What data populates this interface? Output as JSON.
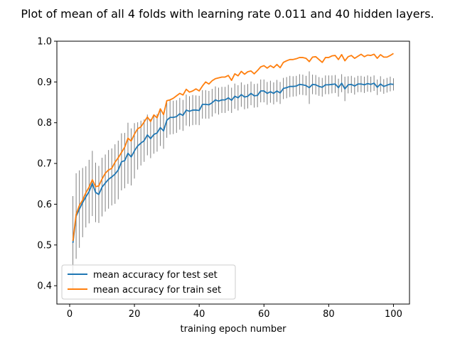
{
  "chart_data": {
    "type": "line",
    "title": "Plot of mean of all 4 folds with learning rate 0.011 and 40 hidden layers.",
    "xlabel": "training epoch number",
    "ylabel": "",
    "xlim": [
      -3.95,
      104.95
    ],
    "ylim": [
      0.355,
      1.0
    ],
    "xticks": [
      0,
      20,
      40,
      60,
      80,
      100
    ],
    "yticks": [
      0.4,
      0.5,
      0.6,
      0.7,
      0.8,
      0.9,
      1.0
    ],
    "xtick_labels": [
      "0",
      "20",
      "40",
      "60",
      "80",
      "100"
    ],
    "ytick_labels": [
      "0.4",
      "0.5",
      "0.6",
      "0.7",
      "0.8",
      "0.9",
      "1.0"
    ],
    "grid": false,
    "legend_position": "lower-left",
    "series": [
      {
        "name": "mean accuracy for test set",
        "color": "#1f77b4",
        "x": [
          1,
          2,
          3,
          4,
          5,
          6,
          7,
          8,
          9,
          10,
          11,
          12,
          13,
          14,
          15,
          16,
          17,
          18,
          19,
          20,
          21,
          22,
          23,
          24,
          25,
          26,
          27,
          28,
          29,
          30,
          31,
          32,
          33,
          34,
          35,
          36,
          37,
          38,
          39,
          40,
          41,
          42,
          43,
          44,
          45,
          46,
          47,
          48,
          49,
          50,
          51,
          52,
          53,
          54,
          55,
          56,
          57,
          58,
          59,
          60,
          61,
          62,
          63,
          64,
          65,
          66,
          67,
          68,
          69,
          70,
          71,
          72,
          73,
          74,
          75,
          76,
          77,
          78,
          79,
          80,
          81,
          82,
          83,
          84,
          85,
          86,
          87,
          88,
          89,
          90,
          91,
          92,
          93,
          94,
          95,
          96,
          97,
          98,
          99,
          100
        ],
        "y": [
          0.505,
          0.571,
          0.588,
          0.604,
          0.618,
          0.631,
          0.651,
          0.629,
          0.624,
          0.642,
          0.652,
          0.661,
          0.667,
          0.674,
          0.684,
          0.704,
          0.707,
          0.725,
          0.716,
          0.731,
          0.743,
          0.75,
          0.756,
          0.77,
          0.761,
          0.771,
          0.775,
          0.788,
          0.78,
          0.806,
          0.813,
          0.813,
          0.815,
          0.822,
          0.818,
          0.831,
          0.828,
          0.831,
          0.831,
          0.83,
          0.845,
          0.845,
          0.844,
          0.849,
          0.856,
          0.853,
          0.856,
          0.856,
          0.861,
          0.855,
          0.865,
          0.861,
          0.869,
          0.863,
          0.865,
          0.872,
          0.866,
          0.867,
          0.878,
          0.878,
          0.872,
          0.876,
          0.872,
          0.878,
          0.873,
          0.884,
          0.886,
          0.889,
          0.889,
          0.89,
          0.894,
          0.893,
          0.891,
          0.886,
          0.894,
          0.893,
          0.889,
          0.887,
          0.893,
          0.893,
          0.894,
          0.895,
          0.886,
          0.897,
          0.883,
          0.893,
          0.894,
          0.89,
          0.895,
          0.895,
          0.893,
          0.896,
          0.894,
          0.897,
          0.887,
          0.895,
          0.889,
          0.892,
          0.895,
          0.894
        ],
        "err": [
          0.115,
          0.105,
          0.095,
          0.085,
          0.075,
          0.078,
          0.08,
          0.073,
          0.07,
          0.072,
          0.07,
          0.072,
          0.07,
          0.073,
          0.072,
          0.07,
          0.068,
          0.075,
          0.07,
          0.068,
          0.058,
          0.055,
          0.052,
          0.05,
          0.048,
          0.047,
          0.046,
          0.045,
          0.044,
          0.043,
          0.042,
          0.041,
          0.04,
          0.039,
          0.038,
          0.038,
          0.037,
          0.037,
          0.036,
          0.036,
          0.035,
          0.035,
          0.034,
          0.034,
          0.033,
          0.033,
          0.032,
          0.032,
          0.032,
          0.031,
          0.031,
          0.031,
          0.03,
          0.03,
          0.03,
          0.029,
          0.029,
          0.029,
          0.028,
          0.028,
          0.028,
          0.027,
          0.027,
          0.027,
          0.027,
          0.026,
          0.026,
          0.026,
          0.025,
          0.025,
          0.025,
          0.025,
          0.024,
          0.04,
          0.024,
          0.024,
          0.023,
          0.023,
          0.023,
          0.023,
          0.022,
          0.022,
          0.022,
          0.022,
          0.03,
          0.021,
          0.021,
          0.021,
          0.02,
          0.02,
          0.02,
          0.02,
          0.019,
          0.019,
          0.019,
          0.019,
          0.018,
          0.018,
          0.018,
          0.015
        ]
      },
      {
        "name": "mean accuracy for train set",
        "color": "#ff7f0e",
        "x": [
          1,
          2,
          3,
          4,
          5,
          6,
          7,
          8,
          9,
          10,
          11,
          12,
          13,
          14,
          15,
          16,
          17,
          18,
          19,
          20,
          21,
          22,
          23,
          24,
          25,
          26,
          27,
          28,
          29,
          30,
          31,
          32,
          33,
          34,
          35,
          36,
          37,
          38,
          39,
          40,
          41,
          42,
          43,
          44,
          45,
          46,
          47,
          48,
          49,
          50,
          51,
          52,
          53,
          54,
          55,
          56,
          57,
          58,
          59,
          60,
          61,
          62,
          63,
          64,
          65,
          66,
          67,
          68,
          69,
          70,
          71,
          72,
          73,
          74,
          75,
          76,
          77,
          78,
          79,
          80,
          81,
          82,
          83,
          84,
          85,
          86,
          87,
          88,
          89,
          90,
          91,
          92,
          93,
          94,
          95,
          96,
          97,
          98,
          99,
          100
        ],
        "y": [
          0.51,
          0.575,
          0.597,
          0.61,
          0.628,
          0.642,
          0.66,
          0.643,
          0.645,
          0.662,
          0.676,
          0.684,
          0.688,
          0.703,
          0.714,
          0.727,
          0.74,
          0.762,
          0.755,
          0.772,
          0.785,
          0.79,
          0.802,
          0.814,
          0.803,
          0.819,
          0.812,
          0.834,
          0.82,
          0.854,
          0.856,
          0.86,
          0.866,
          0.872,
          0.868,
          0.882,
          0.875,
          0.878,
          0.883,
          0.878,
          0.89,
          0.9,
          0.895,
          0.903,
          0.908,
          0.91,
          0.912,
          0.912,
          0.916,
          0.904,
          0.92,
          0.915,
          0.926,
          0.919,
          0.925,
          0.927,
          0.92,
          0.928,
          0.937,
          0.94,
          0.934,
          0.94,
          0.935,
          0.943,
          0.935,
          0.948,
          0.952,
          0.955,
          0.955,
          0.957,
          0.96,
          0.96,
          0.958,
          0.95,
          0.961,
          0.962,
          0.955,
          0.948,
          0.96,
          0.96,
          0.964,
          0.965,
          0.955,
          0.967,
          0.952,
          0.962,
          0.965,
          0.958,
          0.963,
          0.968,
          0.962,
          0.966,
          0.965,
          0.968,
          0.958,
          0.967,
          0.961,
          0.961,
          0.965,
          0.97
        ]
      }
    ]
  }
}
